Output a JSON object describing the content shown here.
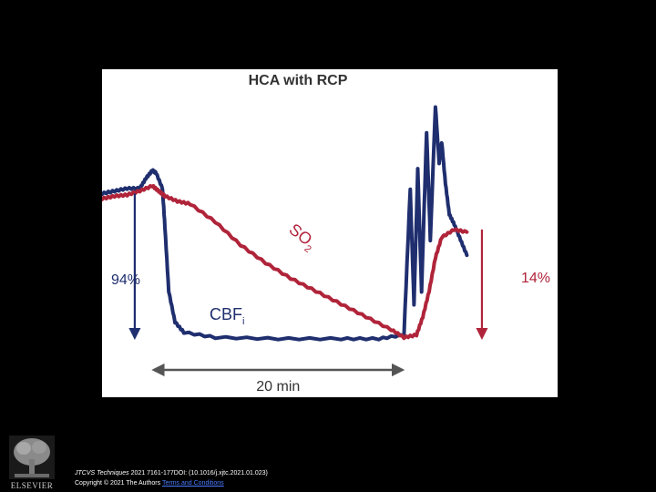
{
  "chart_data": {
    "type": "line",
    "title": "HCA with RCP",
    "xlabel": "",
    "ylabel": "",
    "x_unit": "min",
    "xlim": [
      -4,
      27
    ],
    "ylim": [
      0,
      100
    ],
    "series": [
      {
        "name": "SO2",
        "label_main": "SO",
        "label_sub": "2",
        "color": "#b0243a",
        "x": [
          -4,
          -3,
          -2,
          -1,
          0,
          0.5,
          1,
          2,
          3,
          5,
          7,
          9,
          11,
          13,
          15,
          17,
          19,
          20,
          21,
          21.5,
          22,
          22.5,
          23,
          24,
          25
        ],
        "y": [
          56,
          57,
          57.5,
          59,
          61,
          59,
          57,
          55,
          54,
          47,
          38,
          31,
          25,
          20,
          15,
          10,
          5,
          2,
          3,
          10,
          20,
          33,
          41,
          44,
          43
        ]
      },
      {
        "name": "CBFi",
        "label_main": "CBF",
        "label_sub": "i",
        "color": "#1f2e6e",
        "x": [
          -4,
          -3,
          -2,
          -1,
          -0.5,
          0,
          0.3,
          0.8,
          1,
          1.3,
          1.8,
          2.5,
          5,
          10,
          15,
          18,
          20,
          20.5,
          20.8,
          21.1,
          21.4,
          21.8,
          22.1,
          22.5,
          22.8,
          23,
          23.3,
          23.6,
          24,
          24.5,
          25
        ],
        "y": [
          58,
          59,
          60,
          60,
          64,
          67,
          66,
          60,
          45,
          20,
          8,
          4,
          2,
          1.5,
          1.5,
          1.5,
          3,
          60,
          15,
          68,
          20,
          82,
          40,
          92,
          70,
          78,
          62,
          50,
          46,
          40,
          34
        ]
      }
    ],
    "annotations": {
      "left_percent": "94%",
      "right_percent": "14%",
      "duration": "20 min",
      "duration_range": [
        0,
        20
      ]
    }
  },
  "colors": {
    "so2": "#b0243a",
    "cbf": "#1f2e6e",
    "arrow": "#555555",
    "background": "#000000"
  },
  "citation": {
    "journal": "JTCVS Techniques",
    "rest": " 2021 7161-177DOI: (10.1016/j.xjtc.2021.01.023)",
    "copyright": "Copyright © 2021 The Authors",
    "license_link": "Terms and Conditions"
  },
  "logo": {
    "icon": "elsevier-tree-icon",
    "wordmark": "ELSEVIER"
  }
}
